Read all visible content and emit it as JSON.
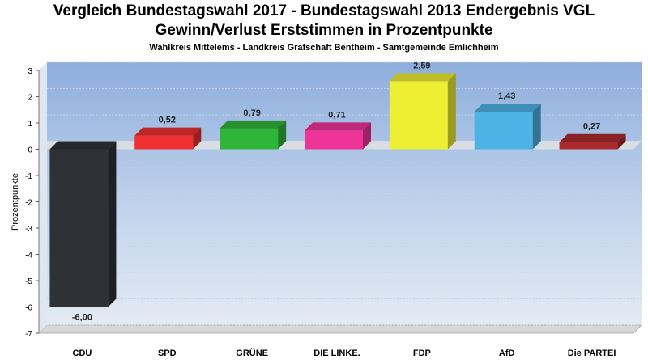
{
  "chart_data": {
    "type": "bar",
    "title_line1": "Vergleich Bundestagswahl 2017 - Bundestagswahl 2013 Endergebnis VGL",
    "title_line2": "Gewinn/Verlust Erststimmen in Prozentpunkte",
    "subtitle": "Wahlkreis Mittelems - Landkreis Grafschaft Bentheim - Samtgemeinde Emlichheim",
    "ylabel": "Prozentpunkte",
    "xlabel": "",
    "ylim": [
      -7,
      3
    ],
    "yticks": [
      3,
      2,
      1,
      0,
      -1,
      -2,
      -3,
      -4,
      -5,
      -6,
      -7
    ],
    "categories": [
      "CDU",
      "SPD",
      "GRÜNE",
      "DIE LINKE.",
      "FDP",
      "AfD",
      "Die PARTEI"
    ],
    "values": [
      -6.0,
      0.52,
      0.79,
      0.71,
      2.59,
      1.43,
      0.27
    ],
    "value_labels": [
      "-6,00",
      "0,52",
      "0,79",
      "0,71",
      "2,59",
      "1,43",
      "0,27"
    ],
    "colors": [
      "#2e3237",
      "#ee3030",
      "#2fb53a",
      "#ee3399",
      "#eeee33",
      "#4db3e6",
      "#aa2a2e"
    ],
    "grid": true,
    "legend": "none",
    "background_color": "#a9c4e6"
  }
}
